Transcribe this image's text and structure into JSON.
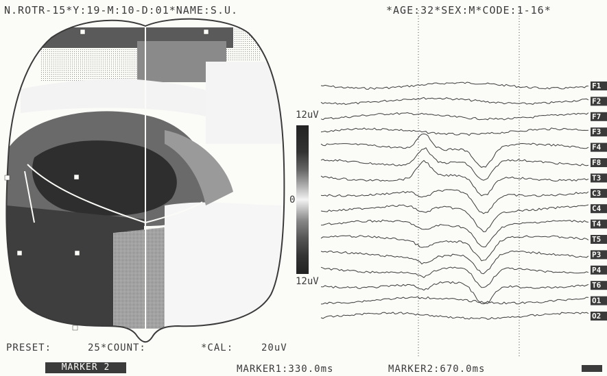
{
  "header": {
    "left": "N.ROTR-15*Y:19-M:10-D:01*NAME:S.U.",
    "right": "*AGE:32*SEX:M*CODE:1-16*"
  },
  "scale": {
    "top": "12uV",
    "zero": "0",
    "bottom": "12uV"
  },
  "footer": {
    "preset": "PRESET:",
    "count": "25*COUNT:",
    "cal": "*CAL:",
    "cal_value": "20uV",
    "marker_button": "MARKER 2",
    "marker1": "MARKER1:330.0ms",
    "marker2": "MARKER2:670.0ms"
  },
  "channels": [
    "F1",
    "F2",
    "F7",
    "F3",
    "F4",
    "F8",
    "T3",
    "C3",
    "C4",
    "T4",
    "T5",
    "P3",
    "P4",
    "T6",
    "O1",
    "O2"
  ],
  "markers_ms": [
    330.0,
    670.0
  ],
  "colors": {
    "ink": "#3a3a3a",
    "paper": "#fbfbf8"
  }
}
